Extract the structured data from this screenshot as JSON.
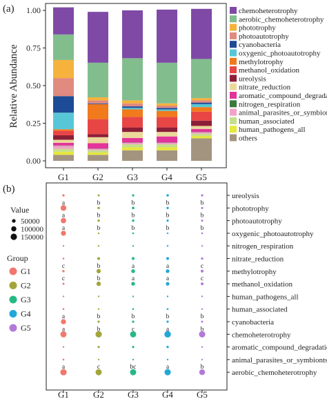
{
  "panel_a": {
    "tag": "(a)",
    "ylabel": "Relative Abundance",
    "yticks": [
      "0.00",
      "0.25",
      "0.50",
      "0.75",
      "1.00"
    ]
  },
  "panel_b": {
    "tag": "(b)",
    "size_legend_title": "Value",
    "size_legend_items": [
      "50000",
      "100000",
      "150000"
    ],
    "group_legend_title": "Group"
  },
  "colors": {
    "G1": "#f0786e",
    "G2": "#a3a53a",
    "G3": "#27b985",
    "G4": "#22a8d8",
    "G5": "#b27ad8"
  },
  "chart_data": [
    {
      "type": "bar",
      "stacked": true,
      "categories": [
        "G1",
        "G2",
        "G3",
        "G4",
        "G5"
      ],
      "xlabel": "",
      "ylabel": "Relative Abundance",
      "ylim": [
        0,
        1
      ],
      "legend_position": "right",
      "series": [
        {
          "name": "others",
          "color": "#a39480",
          "values": [
            0.04,
            0.04,
            0.07,
            0.07,
            0.15
          ]
        },
        {
          "name": "human_pathogens_all",
          "color": "#e6e83d",
          "values": [
            0.02,
            0.015,
            0.02,
            0.02,
            0.015
          ]
        },
        {
          "name": "human_associated",
          "color": "#c6df8c",
          "values": [
            0.02,
            0.015,
            0.02,
            0.02,
            0.015
          ]
        },
        {
          "name": "animal_parasites_or_symbionts",
          "color": "#f2a2c9",
          "values": [
            0.02,
            0.01,
            0.01,
            0.01,
            0.01
          ]
        },
        {
          "name": "nitrogen_respiration",
          "color": "#3c7a3c",
          "values": [
            0.002,
            0.002,
            0.002,
            0.002,
            0.002
          ]
        },
        {
          "name": "aromatic_compound_degradation",
          "color": "#e3349b",
          "values": [
            0.018,
            0.035,
            0.03,
            0.04,
            0.02
          ]
        },
        {
          "name": "nitrate_reduction",
          "color": "#ead99a",
          "values": [
            0.02,
            0.04,
            0.04,
            0.03,
            0.02
          ]
        },
        {
          "name": "ureolysis",
          "color": "#8c1f37",
          "values": [
            0.03,
            0.02,
            0.03,
            0.03,
            0.035
          ]
        },
        {
          "name": "methanol_oxidation",
          "color": "#e84545",
          "values": [
            0.03,
            0.1,
            0.07,
            0.07,
            0.06
          ]
        },
        {
          "name": "methylotrophy",
          "color": "#f07a1c",
          "values": [
            0.01,
            0.1,
            0.05,
            0.04,
            0.03
          ]
        },
        {
          "name": "oxygenic_photoautotrophy",
          "color": "#57c7d7",
          "values": [
            0.11,
            0.0,
            0.01,
            0.01,
            0.02
          ]
        },
        {
          "name": "cyanobacteria",
          "color": "#1e4b96",
          "values": [
            0.11,
            0.005,
            0.01,
            0.01,
            0.01
          ]
        },
        {
          "name": "photoautotrophy",
          "color": "#e08a80",
          "values": [
            0.12,
            0.02,
            0.02,
            0.015,
            0.015
          ]
        },
        {
          "name": "phototrophy",
          "color": "#f5b23c",
          "values": [
            0.12,
            0.02,
            0.02,
            0.015,
            0.015
          ]
        },
        {
          "name": "aerobic_chemoheterotrophy",
          "color": "#82bd8e",
          "values": [
            0.17,
            0.23,
            0.28,
            0.27,
            0.26
          ]
        },
        {
          "name": "chemoheterotrophy",
          "color": "#7f4aa6",
          "values": [
            0.18,
            0.338,
            0.318,
            0.353,
            0.333
          ]
        }
      ]
    },
    {
      "type": "scatter",
      "subtype": "bubble",
      "x": [
        "G1",
        "G2",
        "G3",
        "G4",
        "G5"
      ],
      "y": [
        "ureolysis",
        "phototrophy",
        "photoautotrophy",
        "oxygenic_photoautotrophy",
        "nitrogen_respiration",
        "nitrate_reduction",
        "methylotrophy",
        "methanol_oxidation",
        "human_pathogens_all",
        "human_associated",
        "cyanobacteria",
        "chemoheterotrophy",
        "aromatic_compound_degradation",
        "animal_parasites_or_symbionts",
        "aerobic_chemoheterotrophy"
      ],
      "size_legend": [
        50000,
        100000,
        150000
      ],
      "groups": [
        "G1",
        "G2",
        "G3",
        "G4",
        "G5"
      ],
      "values": [
        [
          20000,
          15000,
          20000,
          22000,
          18000
        ],
        [
          120000,
          22000,
          25000,
          20000,
          18000
        ],
        [
          110000,
          20000,
          22000,
          18000,
          16000
        ],
        [
          95000,
          10000,
          12000,
          10000,
          12000
        ],
        [
          5000,
          4000,
          5000,
          5000,
          5000
        ],
        [
          12000,
          30000,
          32000,
          30000,
          20000
        ],
        [
          20000,
          70000,
          55000,
          50000,
          30000
        ],
        [
          15000,
          72000,
          52000,
          48000,
          28000
        ],
        [
          8000,
          6000,
          8000,
          8000,
          6000
        ],
        [
          12000,
          10000,
          12000,
          12000,
          8000
        ],
        [
          100000,
          18000,
          20000,
          18000,
          16000
        ],
        [
          140000,
          150000,
          140000,
          160000,
          150000
        ],
        [
          10000,
          18000,
          18000,
          20000,
          10000
        ],
        [
          12000,
          7000,
          8000,
          8000,
          6000
        ],
        [
          150000,
          140000,
          140000,
          145000,
          125000
        ]
      ],
      "labels": [
        [
          "",
          "",
          "",
          "",
          ""
        ],
        [
          "a",
          "b",
          "b",
          "b",
          "b"
        ],
        [
          "a",
          "b",
          "b",
          "b",
          "b"
        ],
        [
          "a",
          "b",
          "b",
          "b",
          "b"
        ],
        [
          "",
          "",
          "",
          "",
          ""
        ],
        [
          "",
          "",
          "",
          "",
          ""
        ],
        [
          "c",
          "b",
          "a",
          "a",
          "c"
        ],
        [
          "c",
          "b",
          "a",
          "a",
          "c"
        ],
        [
          "",
          "",
          "",
          "",
          ""
        ],
        [
          "",
          "",
          "",
          "",
          ""
        ],
        [
          "a",
          "b",
          "b",
          "b",
          "b"
        ],
        [
          "a",
          "b",
          "c",
          "a",
          "b"
        ],
        [
          "",
          "",
          "",
          "",
          ""
        ],
        [
          "",
          "",
          "",
          "",
          ""
        ],
        [
          "a",
          "c",
          "bc",
          "a",
          "b"
        ]
      ]
    }
  ]
}
